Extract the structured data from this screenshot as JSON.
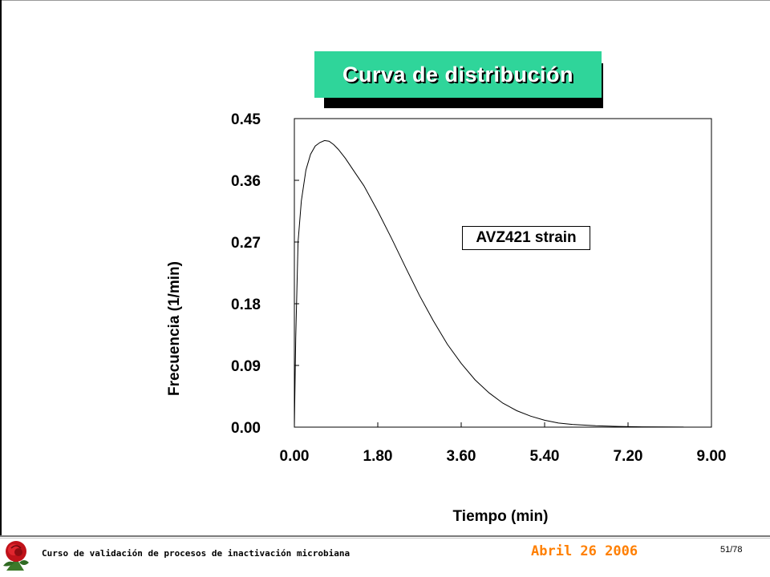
{
  "slide": {
    "title": "Curva de distribución",
    "footer_course": "Curso de validación de procesos de inactivación microbiana",
    "footer_date": "Abril 26 2006",
    "footer_page": "51/78",
    "footer_icon": "rose-icon",
    "title_bg_color": "#2fd59a",
    "date_color": "#ff7f00"
  },
  "chart_data": {
    "type": "line",
    "title": "",
    "xlabel": "Tiempo (min)",
    "ylabel": "Frecuencia (1/min)",
    "xlim": [
      0,
      9
    ],
    "ylim": [
      0,
      0.45
    ],
    "xticks": [
      "0.00",
      "1.80",
      "3.60",
      "5.40",
      "7.20",
      "9.00"
    ],
    "yticks": [
      "0.00",
      "0.09",
      "0.18",
      "0.27",
      "0.36",
      "0.45"
    ],
    "annotation": "AVZ421 strain",
    "grid": false,
    "series": [
      {
        "x": [
          0.0,
          0.03,
          0.08,
          0.15,
          0.25,
          0.35,
          0.45,
          0.55,
          0.65,
          0.75,
          0.85,
          0.95,
          1.1,
          1.3,
          1.5,
          1.8,
          2.1,
          2.4,
          2.7,
          3.0,
          3.3,
          3.6,
          3.9,
          4.2,
          4.5,
          4.8,
          5.1,
          5.4,
          5.7,
          6.0,
          6.5,
          7.0,
          7.5,
          8.0,
          8.4
        ],
        "y": [
          0.0,
          0.13,
          0.27,
          0.33,
          0.375,
          0.398,
          0.41,
          0.415,
          0.418,
          0.417,
          0.412,
          0.405,
          0.392,
          0.372,
          0.352,
          0.315,
          0.275,
          0.233,
          0.192,
          0.155,
          0.121,
          0.093,
          0.069,
          0.05,
          0.035,
          0.024,
          0.016,
          0.01,
          0.006,
          0.004,
          0.002,
          0.001,
          0.0005,
          0.0003,
          0.0001
        ]
      }
    ]
  }
}
